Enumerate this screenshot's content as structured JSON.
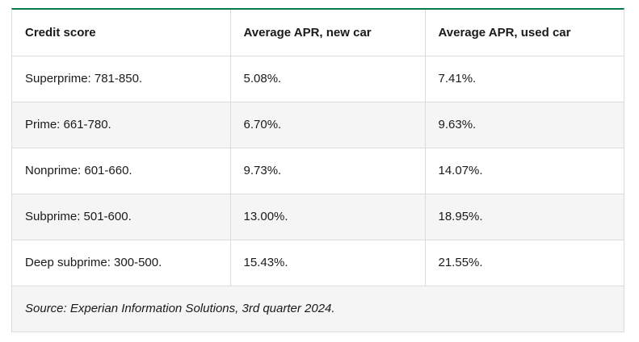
{
  "table": {
    "headers": [
      "Credit score",
      "Average APR, new car",
      "Average APR, used car"
    ],
    "rows": [
      [
        "Superprime: 781-850.",
        "5.08%.",
        "7.41%."
      ],
      [
        "Prime: 661-780.",
        "6.70%.",
        "9.63%."
      ],
      [
        "Nonprime: 601-660.",
        "9.73%.",
        "14.07%."
      ],
      [
        "Subprime: 501-600.",
        "13.00%.",
        "18.95%."
      ],
      [
        "Deep subprime: 300-500.",
        "15.43%.",
        "21.55%."
      ]
    ],
    "source": "Source: Experian Information Solutions, 3rd quarter 2024."
  },
  "colors": {
    "accent_border": "#0b7a4b",
    "stripe": "#f5f5f5",
    "grid": "#dcdcdc"
  }
}
